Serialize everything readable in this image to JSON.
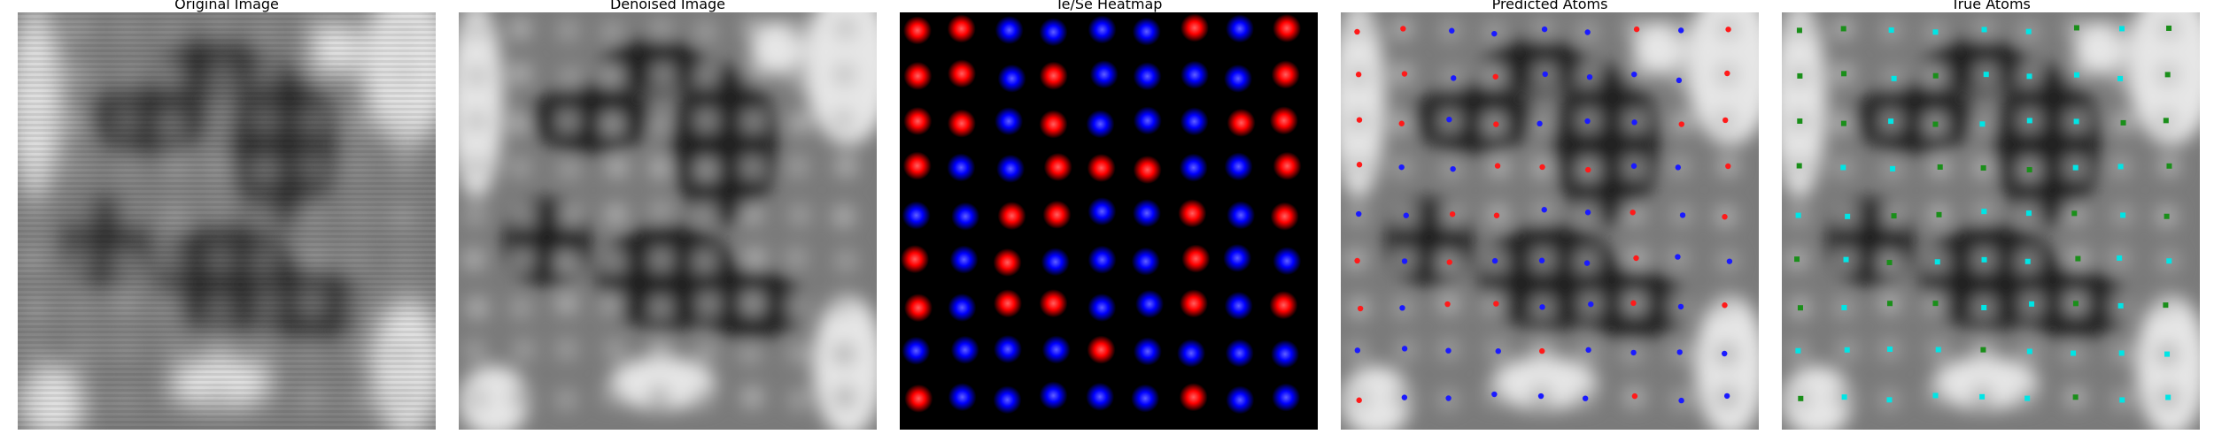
{
  "panels": [
    {
      "title": "Original Image"
    },
    {
      "title": "Denoised Image"
    },
    {
      "title": "Te/Se Heatmap"
    },
    {
      "title": "Predicted Atoms"
    },
    {
      "title": "True Atoms"
    }
  ],
  "colors": {
    "te": "#ff1a1a",
    "se": "#1a1aff",
    "true_primary": "#00e5e5",
    "true_secondary": "#1a8f1a",
    "heatmap_bg": "#000000"
  },
  "atom_grid": {
    "rows": 9,
    "cols": 9,
    "te_sites": [
      [
        0,
        0
      ],
      [
        0,
        1
      ],
      [
        0,
        6
      ],
      [
        0,
        8
      ],
      [
        1,
        0
      ],
      [
        1,
        1
      ],
      [
        1,
        3
      ],
      [
        1,
        8
      ],
      [
        2,
        0
      ],
      [
        2,
        1
      ],
      [
        2,
        3
      ],
      [
        2,
        7
      ],
      [
        2,
        8
      ],
      [
        3,
        0
      ],
      [
        3,
        3
      ],
      [
        3,
        4
      ],
      [
        3,
        5
      ],
      [
        3,
        8
      ],
      [
        4,
        2
      ],
      [
        4,
        3
      ],
      [
        4,
        6
      ],
      [
        4,
        8
      ],
      [
        5,
        0
      ],
      [
        5,
        2
      ],
      [
        5,
        6
      ],
      [
        6,
        0
      ],
      [
        6,
        2
      ],
      [
        6,
        3
      ],
      [
        6,
        6
      ],
      [
        6,
        8
      ],
      [
        7,
        4
      ],
      [
        8,
        0
      ],
      [
        8,
        6
      ]
    ]
  }
}
